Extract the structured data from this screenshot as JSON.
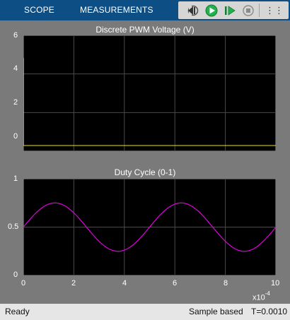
{
  "toolbar": {
    "tabs": [
      {
        "label": "SCOPE"
      },
      {
        "label": "MEASUREMENTS"
      }
    ],
    "buttons": [
      {
        "icon": "step-back-icon"
      },
      {
        "icon": "run-icon"
      },
      {
        "icon": "step-forward-icon"
      },
      {
        "icon": "stop-icon"
      },
      {
        "icon": "more-options-icon"
      }
    ],
    "more_label": "⋮⋮"
  },
  "colors": {
    "toolbar_bg": "#0d4e84",
    "plot_bg": "#000000",
    "grid": "#4a4a4a",
    "pwm_trace": "#e8e800",
    "duty_trace": "#e000e0"
  },
  "chart_data": [
    {
      "type": "line",
      "title": "Discrete PWM Voltage (V)",
      "xlim": [
        0,
        0.001
      ],
      "ylim": [
        0,
        6
      ],
      "yticks": [
        "0",
        "2",
        "4",
        "6"
      ],
      "grid": true,
      "series": [
        {
          "x": [
            0,
            5e-07,
            5e-07,
            0.001
          ],
          "y": [
            5,
            5,
            0,
            0
          ]
        }
      ]
    },
    {
      "type": "line",
      "title": "Duty Cycle (0-1)",
      "xlim": [
        0,
        0.001
      ],
      "ylim": [
        0,
        1
      ],
      "yticks": [
        "0",
        "0.5",
        "1"
      ],
      "xticks": [
        "0",
        "2",
        "4",
        "6",
        "8",
        "10"
      ],
      "xscale_label": "x10",
      "xscale_exp": "-4",
      "grid": true,
      "series": [
        {
          "function": "0.5 + 0.25*sin(2*pi*2000*t)",
          "amplitude": 0.25,
          "offset": 0.5,
          "frequency_hz": 2000
        }
      ]
    }
  ],
  "status": {
    "left": "Ready",
    "mode": "Sample based",
    "time": "T=0.0010"
  }
}
